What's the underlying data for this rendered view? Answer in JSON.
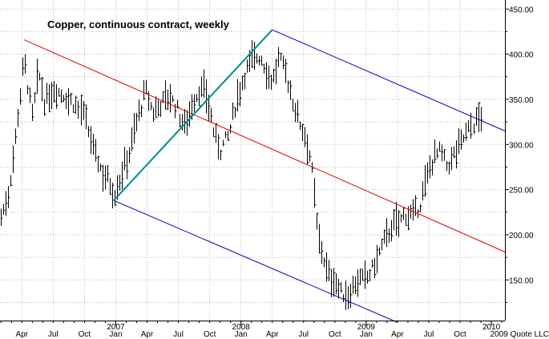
{
  "chart_data": {
    "type": "ohlc",
    "title": "Copper, continuous contract, weekly",
    "copyright": "2009 Quote LLC",
    "ylim": [
      105,
      460
    ],
    "y_ticks": [
      150,
      200,
      250,
      300,
      350,
      400,
      450
    ],
    "y_tick_labels": [
      "150.00",
      "200.00",
      "250.00",
      "300.00",
      "350.00",
      "400.00",
      "450.00"
    ],
    "month_labels": [
      {
        "label": "Apr",
        "t": 3
      },
      {
        "label": "Jul",
        "t": 6
      },
      {
        "label": "Oct",
        "t": 9
      },
      {
        "label": "Jan",
        "t": 12
      },
      {
        "label": "Apr",
        "t": 15
      },
      {
        "label": "Jul",
        "t": 18
      },
      {
        "label": "Oct",
        "t": 21
      },
      {
        "label": "Jan",
        "t": 24
      },
      {
        "label": "Apr",
        "t": 27
      },
      {
        "label": "Jul",
        "t": 30
      },
      {
        "label": "Oct",
        "t": 33
      },
      {
        "label": "Jan",
        "t": 36
      },
      {
        "label": "Apr",
        "t": 39
      },
      {
        "label": "Jul",
        "t": 42
      },
      {
        "label": "Oct",
        "t": 45
      }
    ],
    "year_labels": [
      {
        "label": "2007",
        "t": 12
      },
      {
        "label": "2008",
        "t": 24
      },
      {
        "label": "2009",
        "t": 36
      },
      {
        "label": "2010",
        "t": 48
      }
    ],
    "xlim": [
      0.9,
      49.3
    ],
    "price_anchors": [
      [
        1.0,
        220
      ],
      [
        1.6,
        240
      ],
      [
        2.0,
        270
      ],
      [
        2.5,
        320
      ],
      [
        3.2,
        395
      ],
      [
        3.5,
        370
      ],
      [
        4.0,
        330
      ],
      [
        4.6,
        380
      ],
      [
        5.2,
        345
      ],
      [
        6.0,
        362
      ],
      [
        7.0,
        355
      ],
      [
        8.0,
        345
      ],
      [
        8.8,
        335
      ],
      [
        9.8,
        295
      ],
      [
        10.6,
        270
      ],
      [
        11.2,
        262
      ],
      [
        11.8,
        245
      ],
      [
        12.5,
        268
      ],
      [
        13.2,
        290
      ],
      [
        14.0,
        328
      ],
      [
        14.8,
        360
      ],
      [
        15.5,
        335
      ],
      [
        16.2,
        345
      ],
      [
        17.0,
        355
      ],
      [
        17.8,
        340
      ],
      [
        18.5,
        320
      ],
      [
        19.3,
        345
      ],
      [
        20.0,
        362
      ],
      [
        20.7,
        355
      ],
      [
        21.4,
        310
      ],
      [
        22.0,
        295
      ],
      [
        22.8,
        310
      ],
      [
        23.5,
        348
      ],
      [
        24.2,
        375
      ],
      [
        25.0,
        395
      ],
      [
        25.8,
        398
      ],
      [
        26.5,
        380
      ],
      [
        27.0,
        370
      ],
      [
        27.6,
        395
      ],
      [
        28.2,
        382
      ],
      [
        28.9,
        350
      ],
      [
        29.6,
        325
      ],
      [
        30.3,
        305
      ],
      [
        30.7,
        280
      ],
      [
        31.0,
        245
      ],
      [
        31.3,
        205
      ],
      [
        31.8,
        180
      ],
      [
        32.3,
        155
      ],
      [
        33.0,
        150
      ],
      [
        33.6,
        135
      ],
      [
        34.2,
        132
      ],
      [
        35.0,
        148
      ],
      [
        35.8,
        150
      ],
      [
        36.5,
        160
      ],
      [
        37.2,
        178
      ],
      [
        37.9,
        198
      ],
      [
        38.5,
        210
      ],
      [
        39.2,
        215
      ],
      [
        39.9,
        225
      ],
      [
        40.5,
        220
      ],
      [
        41.1,
        232
      ],
      [
        41.8,
        262
      ],
      [
        42.5,
        288
      ],
      [
        43.1,
        292
      ],
      [
        43.8,
        275
      ],
      [
        44.5,
        290
      ],
      [
        45.2,
        305
      ],
      [
        45.9,
        318
      ],
      [
        46.5,
        325
      ],
      [
        47.0,
        335
      ]
    ],
    "trend_lines": [
      {
        "color": "#e00000",
        "from": [
          3.2,
          416
        ],
        "to": [
          49.3,
          181
        ]
      },
      {
        "color": "#0000cc",
        "from": [
          27.0,
          427
        ],
        "to": [
          49.3,
          315
        ]
      },
      {
        "color": "#0000cc",
        "from": [
          11.8,
          238
        ],
        "to": [
          39.0,
          103
        ]
      },
      {
        "color": "#008b8b",
        "from": [
          11.8,
          238
        ],
        "to": [
          27.0,
          427
        ]
      }
    ],
    "grid": true,
    "colors": {
      "bars": "#000000",
      "grid": "#bbbbbb",
      "background": "#ffffff"
    }
  }
}
